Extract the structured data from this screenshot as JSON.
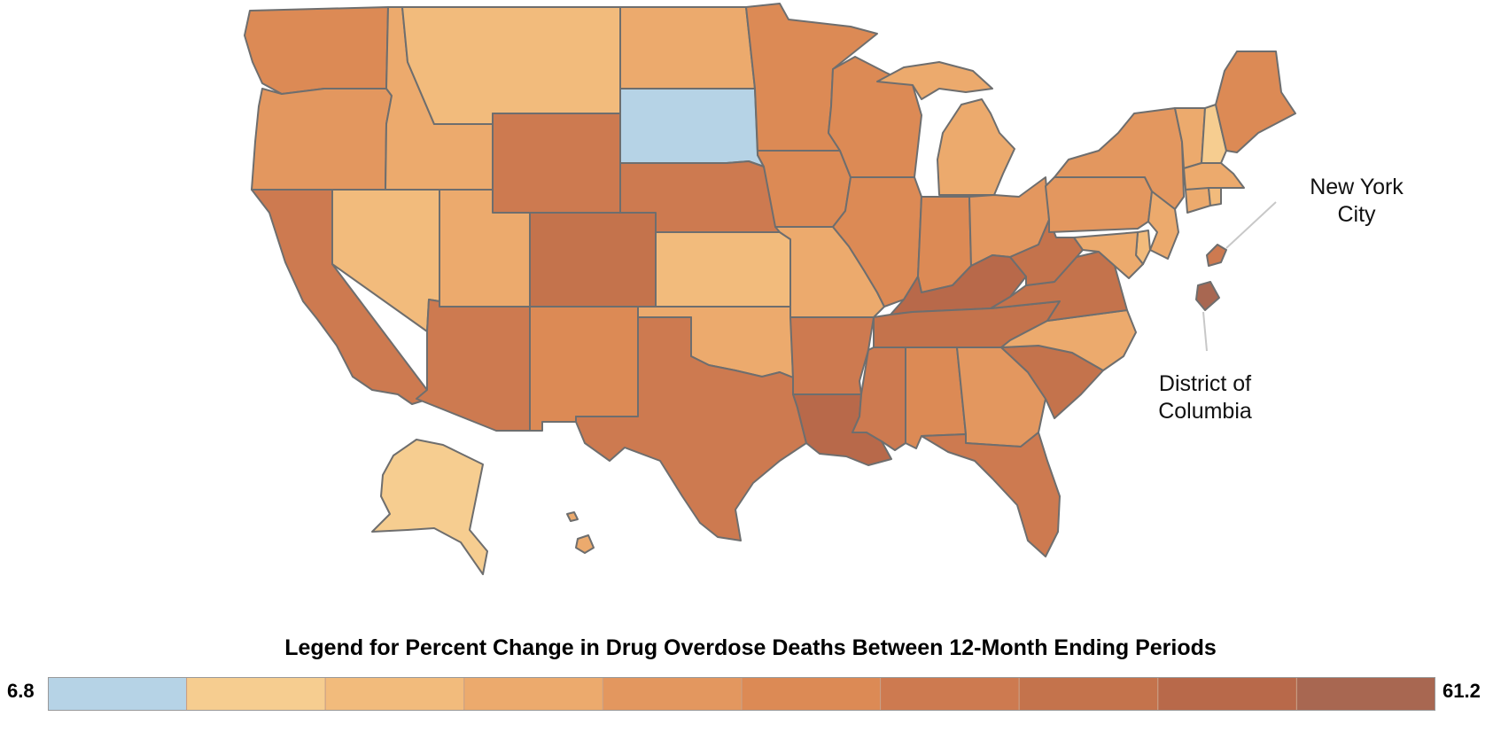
{
  "map": {
    "callouts": {
      "nyc": "New York City",
      "dc": "District of Columbia"
    },
    "regions": {
      "WA": {
        "name": "Washington",
        "color": "#dc8a55"
      },
      "OR": {
        "name": "Oregon",
        "color": "#e3975f"
      },
      "CA": {
        "name": "California",
        "color": "#cd7a50"
      },
      "ID": {
        "name": "Idaho",
        "color": "#ecaa6d"
      },
      "NV": {
        "name": "Nevada",
        "color": "#f2bb7c"
      },
      "MT": {
        "name": "Montana",
        "color": "#f2bb7c"
      },
      "WY": {
        "name": "Wyoming",
        "color": "#cd7a50"
      },
      "UT": {
        "name": "Utah",
        "color": "#ecaa6d"
      },
      "CO": {
        "name": "Colorado",
        "color": "#c4734c"
      },
      "AZ": {
        "name": "Arizona",
        "color": "#cd7a50"
      },
      "NM": {
        "name": "New Mexico",
        "color": "#dc8a55"
      },
      "ND": {
        "name": "North Dakota",
        "color": "#ecaa6d"
      },
      "SD": {
        "name": "South Dakota",
        "color": "#b6d3e6"
      },
      "NE": {
        "name": "Nebraska",
        "color": "#cd7a50"
      },
      "KS": {
        "name": "Kansas",
        "color": "#f2bb7c"
      },
      "OK": {
        "name": "Oklahoma",
        "color": "#ecaa6d"
      },
      "TX": {
        "name": "Texas",
        "color": "#cd7a50"
      },
      "MN": {
        "name": "Minnesota",
        "color": "#dc8a55"
      },
      "IA": {
        "name": "Iowa",
        "color": "#dc8a55"
      },
      "MO": {
        "name": "Missouri",
        "color": "#ecaa6d"
      },
      "AR": {
        "name": "Arkansas",
        "color": "#cd7a50"
      },
      "LA": {
        "name": "Louisiana",
        "color": "#b8694a"
      },
      "WI": {
        "name": "Wisconsin",
        "color": "#dc8a55"
      },
      "IL": {
        "name": "Illinois",
        "color": "#dc8a55"
      },
      "MI": {
        "name": "Michigan",
        "color": "#ecaa6d"
      },
      "IN": {
        "name": "Indiana",
        "color": "#dc8a55"
      },
      "OH": {
        "name": "Ohio",
        "color": "#e3975f"
      },
      "KY": {
        "name": "Kentucky",
        "color": "#b8694a"
      },
      "TN": {
        "name": "Tennessee",
        "color": "#c4734c"
      },
      "MS": {
        "name": "Mississippi",
        "color": "#cd7a50"
      },
      "AL": {
        "name": "Alabama",
        "color": "#dc8a55"
      },
      "GA": {
        "name": "Georgia",
        "color": "#e3975f"
      },
      "FL": {
        "name": "Florida",
        "color": "#cd7a50"
      },
      "SC": {
        "name": "South Carolina",
        "color": "#c4734c"
      },
      "NC": {
        "name": "North Carolina",
        "color": "#ecaa6d"
      },
      "VA": {
        "name": "Virginia",
        "color": "#c4734c"
      },
      "WV": {
        "name": "West Virginia",
        "color": "#c4734c"
      },
      "PA": {
        "name": "Pennsylvania",
        "color": "#e3975f"
      },
      "NY": {
        "name": "New York",
        "color": "#e3975f"
      },
      "NJ": {
        "name": "New Jersey",
        "color": "#ecaa6d"
      },
      "MD": {
        "name": "Maryland",
        "color": "#ecaa6d"
      },
      "DE": {
        "name": "Delaware",
        "color": "#f2bb7c"
      },
      "VT": {
        "name": "Vermont",
        "color": "#ecaa6d"
      },
      "NH": {
        "name": "New Hampshire",
        "color": "#f6cd90"
      },
      "ME": {
        "name": "Maine",
        "color": "#dc8a55"
      },
      "MA": {
        "name": "Massachusetts",
        "color": "#ecaa6d"
      },
      "CT": {
        "name": "Connecticut",
        "color": "#ecaa6d"
      },
      "RI": {
        "name": "Rhode Island",
        "color": "#f2bb7c"
      },
      "AK": {
        "name": "Alaska",
        "color": "#f6cd90"
      },
      "HI": {
        "name": "Hawaii",
        "color": "#ecaa6d"
      },
      "NYC": {
        "name": "New York City",
        "color": "#cd7a50"
      },
      "DC": {
        "name": "District of Columbia",
        "color": "#a86751"
      }
    }
  },
  "legend": {
    "title": "Legend for Percent Change in Drug Overdose Deaths Between 12-Month Ending Periods",
    "min": "6.8",
    "max": "61.2",
    "bins": [
      "#b6d3e6",
      "#f6cd90",
      "#f2bb7c",
      "#ecaa6d",
      "#e3975f",
      "#dc8a55",
      "#cd7a50",
      "#c4734c",
      "#b8694a",
      "#a86751"
    ]
  }
}
